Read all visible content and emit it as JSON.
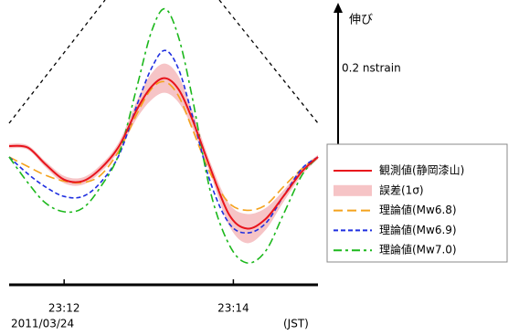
{
  "chart_data": {
    "type": "line",
    "x": [
      1391.35,
      1391.57,
      1391.78,
      1392.0,
      1392.22,
      1392.43,
      1392.65,
      1392.86,
      1393.03,
      1393.19,
      1393.35,
      1393.51,
      1393.73,
      1393.95,
      1394.16,
      1394.38,
      1394.59,
      1394.81,
      1395.0
    ],
    "xlim": [
      1391.35,
      1395.0
    ],
    "xticks": [
      {
        "value": 1392,
        "label": "23:12"
      },
      {
        "value": 1394,
        "label": "23:14"
      }
    ],
    "ylim": [
      -0.175,
      0.215
    ],
    "date_label": "2011/03/24",
    "timezone_label": "(JST)",
    "direction_label": "伸び",
    "scale_label": "0.2 nstrain",
    "series": [
      {
        "name": "観測値(静岡漆山)",
        "color": "#e8141c",
        "dash": "solid",
        "values": [
          0.015,
          0.013,
          -0.01,
          -0.031,
          -0.033,
          -0.016,
          0.015,
          0.065,
          0.096,
          0.108,
          0.093,
          0.053,
          -0.016,
          -0.079,
          -0.098,
          -0.085,
          -0.054,
          -0.02,
          0.0
        ]
      },
      {
        "name": "理論値(Mw6.8)",
        "color": "#f4a21c",
        "dash": "long",
        "values": [
          0.0,
          -0.013,
          -0.025,
          -0.033,
          -0.035,
          -0.025,
          0.009,
          0.059,
          0.093,
          0.103,
          0.084,
          0.04,
          -0.023,
          -0.063,
          -0.073,
          -0.066,
          -0.041,
          -0.016,
          0.0
        ]
      },
      {
        "name": "理論値(Mw6.9)",
        "color": "#1f2fe0",
        "dash": "short",
        "values": [
          0.0,
          -0.023,
          -0.041,
          -0.054,
          -0.054,
          -0.035,
          0.003,
          0.071,
          0.121,
          0.146,
          0.121,
          0.059,
          -0.035,
          -0.091,
          -0.104,
          -0.091,
          -0.054,
          -0.016,
          0.0
        ]
      },
      {
        "name": "理論値(Mw7.0)",
        "color": "#1cb81c",
        "dash": "dashdot",
        "values": [
          0.0,
          -0.035,
          -0.063,
          -0.075,
          -0.07,
          -0.041,
          0.005,
          0.096,
          0.171,
          0.203,
          0.165,
          0.084,
          -0.048,
          -0.12,
          -0.145,
          -0.129,
          -0.079,
          -0.025,
          0.0
        ]
      }
    ],
    "error_band": {
      "name": "誤差(1σ)",
      "color": "#f6c4c6",
      "values": [
        0.003,
        0.003,
        0.004,
        0.005,
        0.005,
        0.005,
        0.006,
        0.012,
        0.018,
        0.02,
        0.018,
        0.012,
        0.008,
        0.015,
        0.02,
        0.015,
        0.008,
        0.005,
        0.003
      ]
    }
  }
}
